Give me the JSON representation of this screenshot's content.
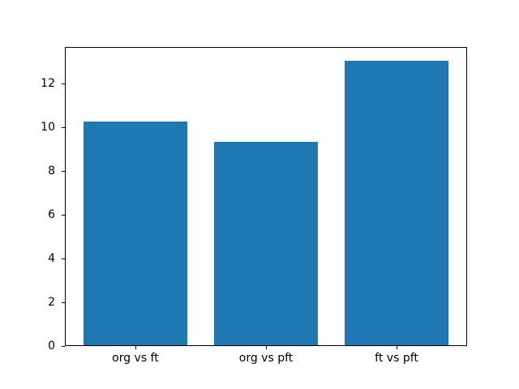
{
  "chart_data": {
    "type": "bar",
    "categories": [
      "org vs ft",
      "org vs pft",
      "ft vs pft"
    ],
    "values": [
      10.2,
      9.3,
      13.0
    ],
    "title": "",
    "xlabel": "",
    "ylabel": "",
    "ylim": [
      0,
      13.65
    ],
    "yticks": [
      0,
      2,
      4,
      6,
      8,
      10,
      12
    ],
    "bar_color": "#1f77b4",
    "bar_width_fraction": 0.8,
    "grid": false,
    "legend": null,
    "background_color": "#ffffff",
    "frame_color": "#000000"
  }
}
